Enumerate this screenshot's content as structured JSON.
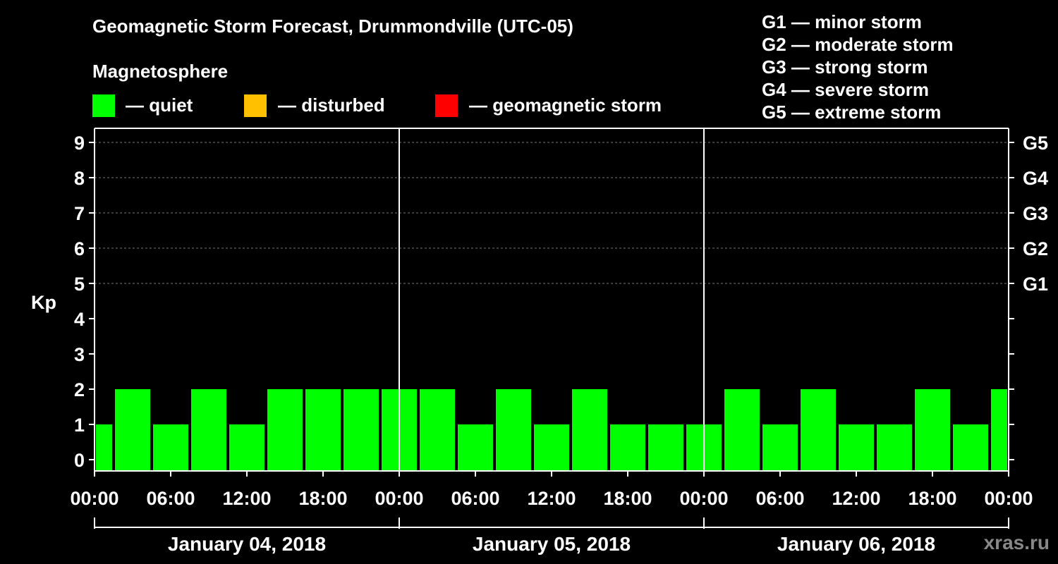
{
  "header": {
    "title": "Geomagnetic Storm Forecast, Drummondville (UTC-05)",
    "subtitle": "Magnetosphere"
  },
  "legend": {
    "items": [
      {
        "label": "— quiet",
        "color": "#00ff00"
      },
      {
        "label": "— disturbed",
        "color": "#ffc000"
      },
      {
        "label": "— geomagnetic storm",
        "color": "#ff0000"
      }
    ]
  },
  "storm_scale": {
    "items": [
      "G1 — minor storm",
      "G2 — moderate storm",
      "G3 — strong storm",
      "G4 — severe storm",
      "G5 — extreme storm"
    ]
  },
  "watermark": "xras.ru",
  "chart_data": {
    "type": "bar",
    "title": "Geomagnetic Storm Forecast, Drummondville (UTC-05)",
    "ylabel": "Kp",
    "ylim": [
      0,
      9
    ],
    "y_ticks": [
      "0",
      "1",
      "2",
      "3",
      "4",
      "5",
      "6",
      "7",
      "8",
      "9"
    ],
    "right_axis": [
      {
        "kp": 5,
        "label": "G1"
      },
      {
        "kp": 6,
        "label": "G2"
      },
      {
        "kp": 7,
        "label": "G3"
      },
      {
        "kp": 8,
        "label": "G4"
      },
      {
        "kp": 9,
        "label": "G5"
      }
    ],
    "x_tick_labels": [
      "00:00",
      "06:00",
      "12:00",
      "18:00",
      "00:00",
      "06:00",
      "12:00",
      "18:00",
      "00:00",
      "06:00",
      "12:00",
      "18:00",
      "00:00"
    ],
    "days": [
      "January 04, 2018",
      "January 05, 2018",
      "January 06, 2018"
    ],
    "interval_hours": 3,
    "values": [
      1,
      2,
      1,
      2,
      1,
      2,
      2,
      2,
      2,
      2,
      1,
      2,
      1,
      2,
      1,
      1,
      1,
      2,
      1,
      2,
      1,
      1,
      2,
      1,
      2
    ],
    "bar_color": "#00ff00",
    "grid": "dashed at Kp 5-9"
  }
}
